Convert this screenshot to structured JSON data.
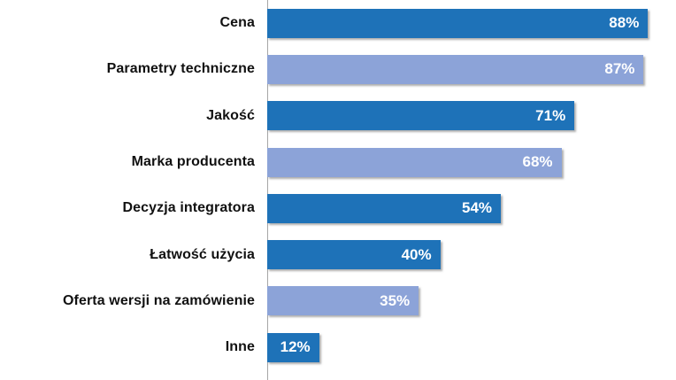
{
  "chart_data": {
    "type": "bar",
    "orientation": "horizontal",
    "title": "",
    "xlabel": "",
    "ylabel": "",
    "grid": false,
    "legend_position": "none",
    "xlim": [
      0,
      94
    ],
    "categories": [
      "Cena",
      "Parametry techniczne",
      "Jakość",
      "Marka producenta",
      "Decyzja integratora",
      "Łatwość użycia",
      "Oferta wersji na zamówienie",
      "Inne"
    ],
    "values": [
      88,
      87,
      71,
      68,
      54,
      40,
      35,
      12
    ],
    "value_labels": [
      "88%",
      "87%",
      "71%",
      "68%",
      "54%",
      "40%",
      "35%",
      "12%"
    ],
    "bar_colors": [
      "#1E72B8",
      "#8CA3D8",
      "#1E72B8",
      "#8CA3D8",
      "#1E72B8",
      "#1E72B8",
      "#8CA3D8",
      "#1E72B8"
    ],
    "colors": {
      "dark_blue": "#1E72B8",
      "light_blue": "#8CA3D8",
      "axis_line": "#A6A6A6",
      "value_label_text": "#FFFFFF",
      "category_label_text": "#111111",
      "background": "#FFFFFF"
    }
  }
}
